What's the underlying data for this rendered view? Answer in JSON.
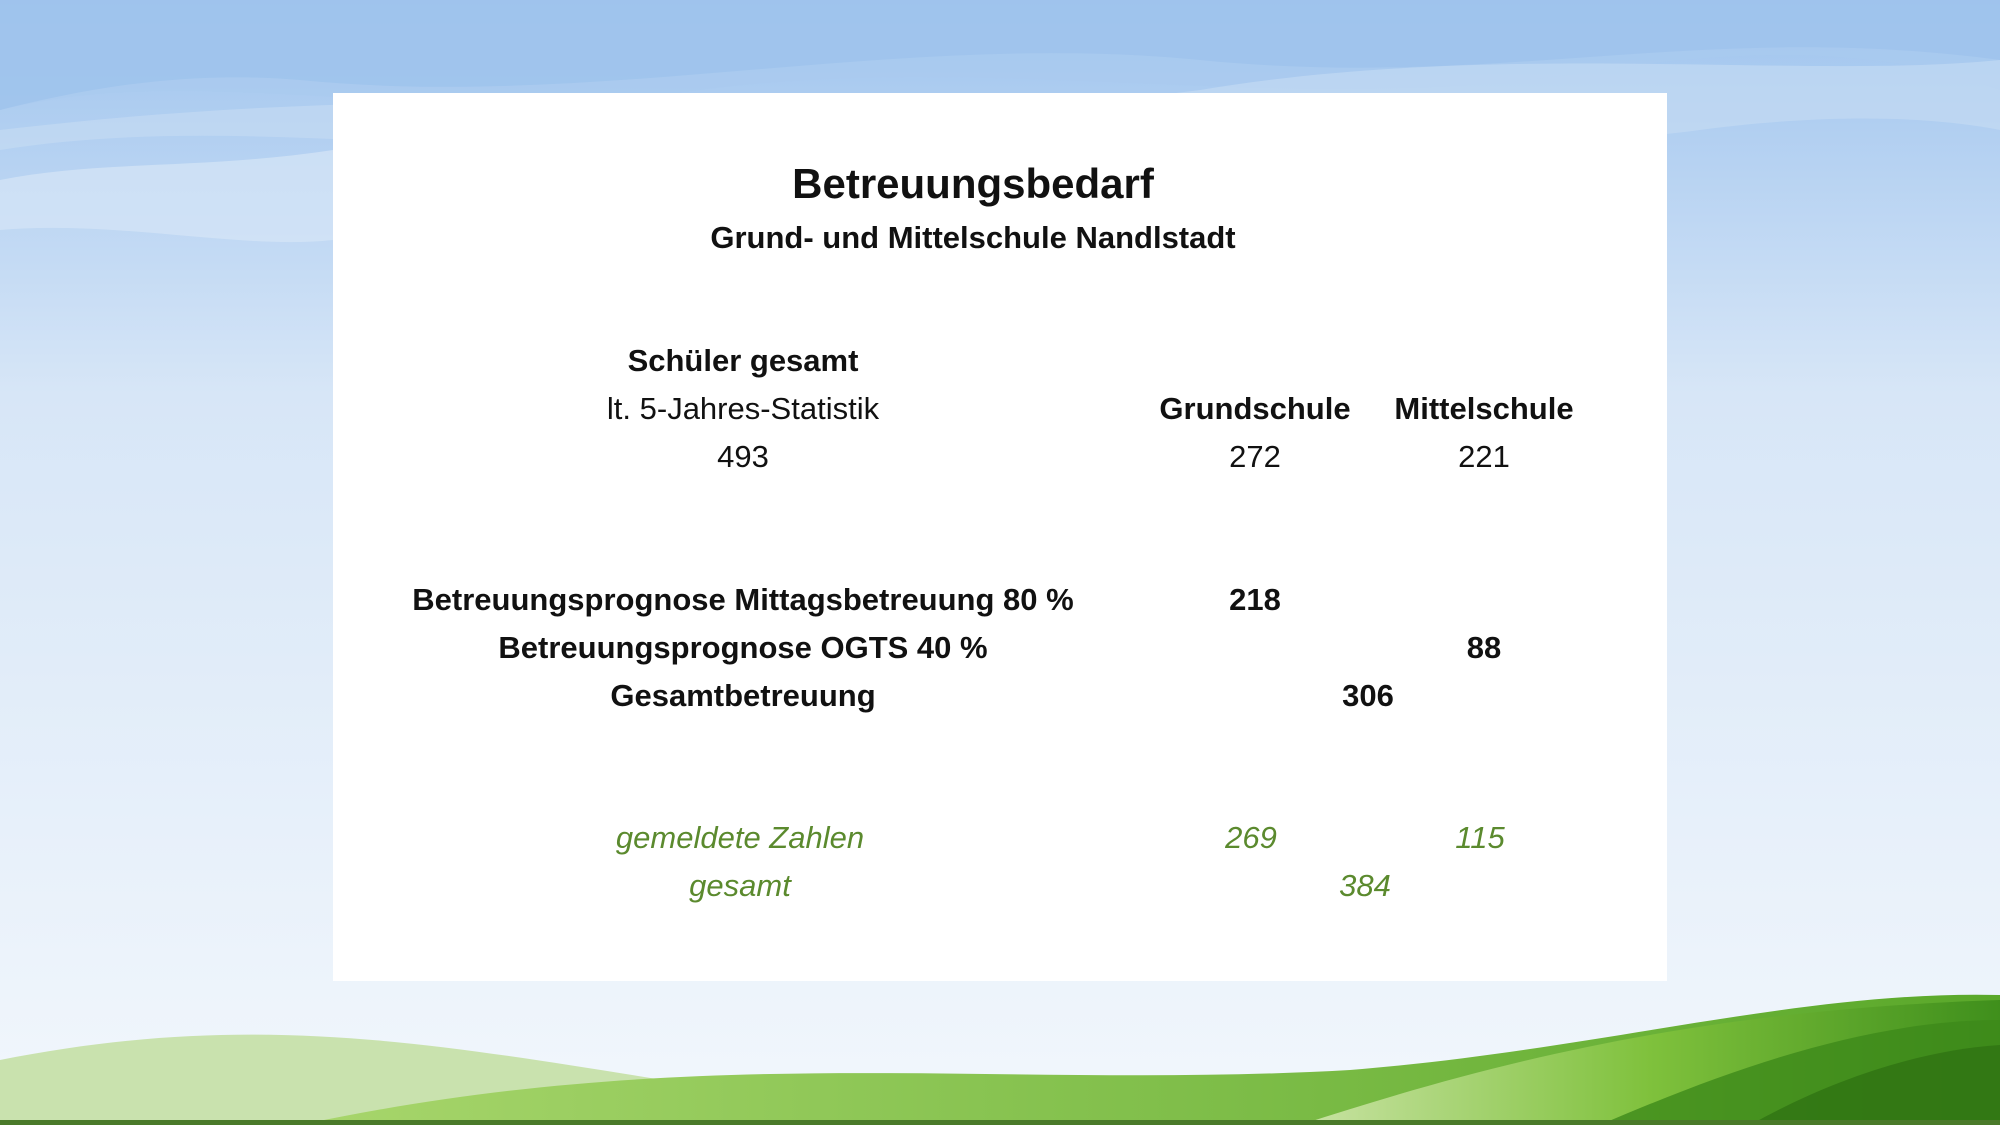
{
  "slide": {
    "title": "Betreuungsbedarf",
    "subtitle": "Grund- und Mittelschule Nandlstadt"
  },
  "students": {
    "heading": "Schüler gesamt",
    "source": "lt. 5-Jahres-Statistik",
    "total": "493"
  },
  "columns": {
    "grundschule": "Grundschule",
    "mittelschule": "Mittelschule"
  },
  "counts": {
    "grundschule": "272",
    "mittelschule": "221"
  },
  "forecast": {
    "mittag_label": "Betreuungsprognose Mittagsbetreuung 80 %",
    "mittag_value": "218",
    "ogts_label": "Betreuungsprognose OGTS 40 %",
    "ogts_value": "88",
    "total_label": "Gesamtbetreuung",
    "total_value": "306"
  },
  "registered": {
    "label": "gemeldete Zahlen",
    "grundschule": "269",
    "mittelschule": "115",
    "total_label": "gesamt",
    "total_value": "384"
  },
  "colors": {
    "text": "#111111",
    "registered_green": "#5b8a2e",
    "sky_blue": "#b9d4f2",
    "grass_green": "#6fb52c"
  }
}
